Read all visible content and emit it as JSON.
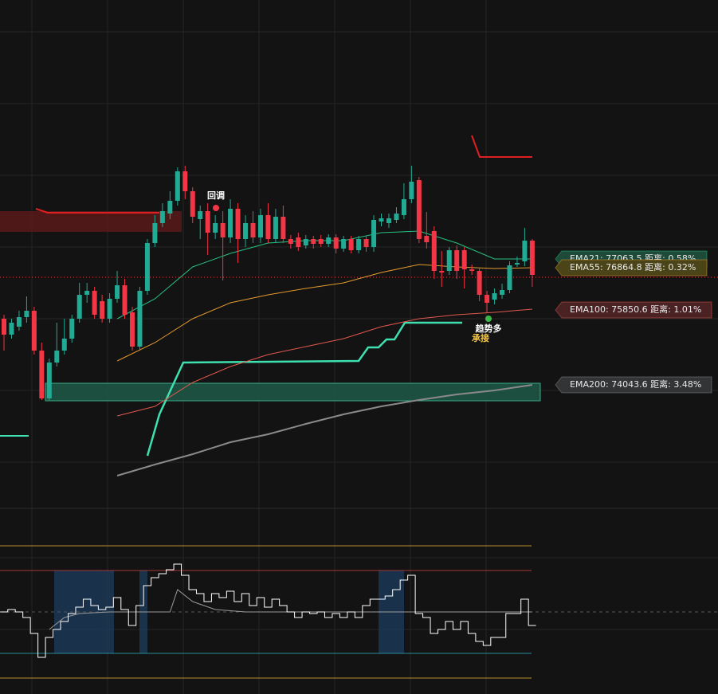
{
  "chart_data": [
    {
      "type": "candlestick",
      "ylim": [
        70865,
        83585
      ],
      "up_color": "#22ab94",
      "down_color": "#f23645",
      "candles": [
        [
          75585,
          75685,
          74785,
          75185
        ],
        [
          75185,
          75585,
          75085,
          75485
        ],
        [
          75385,
          75785,
          75285,
          75625
        ],
        [
          75625,
          76145,
          75485,
          75785
        ],
        [
          75785,
          75885,
          74685,
          74785
        ],
        [
          74785,
          74985,
          73545,
          73585
        ],
        [
          73585,
          74585,
          73545,
          74485
        ],
        [
          74485,
          75485,
          74385,
          74785
        ],
        [
          74785,
          75585,
          74685,
          75085
        ],
        [
          75085,
          75685,
          74985,
          75585
        ],
        [
          75585,
          76485,
          75485,
          76185
        ],
        [
          76185,
          76485,
          75985,
          76285
        ],
        [
          76285,
          76385,
          75585,
          75685
        ],
        [
          76025,
          76185,
          75485,
          75585
        ],
        [
          75585,
          76225,
          75485,
          76085
        ],
        [
          76085,
          76785,
          75985,
          76425
        ],
        [
          76425,
          76585,
          75585,
          75685
        ],
        [
          75745,
          75885,
          74785,
          74885
        ],
        [
          74885,
          76385,
          74785,
          76285
        ],
        [
          76285,
          77585,
          76185,
          77485
        ],
        [
          77485,
          78185,
          77385,
          77985
        ],
        [
          77985,
          78485,
          77885,
          78285
        ],
        [
          78225,
          78785,
          78085,
          78545
        ],
        [
          78545,
          79385,
          78425,
          79285
        ],
        [
          79285,
          79425,
          78585,
          78785
        ],
        [
          78785,
          78885,
          77985,
          78145
        ],
        [
          78085,
          78425,
          77585,
          78285
        ],
        [
          78285,
          78485,
          77185,
          77745
        ],
        [
          77745,
          78185,
          77585,
          77985
        ],
        [
          77985,
          78285,
          76545,
          77625
        ],
        [
          77625,
          78585,
          77485,
          78345
        ],
        [
          78345,
          78485,
          76985,
          77585
        ],
        [
          77585,
          78185,
          77385,
          77985
        ],
        [
          77985,
          78285,
          77485,
          77625
        ],
        [
          77625,
          78345,
          77485,
          78185
        ],
        [
          78185,
          78485,
          77485,
          77585
        ],
        [
          77585,
          78345,
          77485,
          78145
        ],
        [
          78145,
          78425,
          77485,
          77585
        ],
        [
          77585,
          77685,
          77345,
          77465
        ],
        [
          77625,
          77745,
          77285,
          77385
        ],
        [
          77425,
          77685,
          77345,
          77585
        ],
        [
          77585,
          77665,
          77345,
          77465
        ],
        [
          77585,
          77685,
          77385,
          77465
        ],
        [
          77465,
          77705,
          77385,
          77625
        ],
        [
          77625,
          77705,
          77225,
          77345
        ],
        [
          77345,
          77665,
          77265,
          77585
        ],
        [
          77585,
          77665,
          77225,
          77305
        ],
        [
          77305,
          77665,
          77225,
          77585
        ],
        [
          77585,
          77665,
          77265,
          77385
        ],
        [
          77385,
          78185,
          77265,
          78065
        ],
        [
          78025,
          78225,
          77905,
          78105
        ],
        [
          77985,
          78225,
          77865,
          78105
        ],
        [
          78065,
          78385,
          77985,
          78225
        ],
        [
          78185,
          78985,
          78085,
          78585
        ],
        [
          78585,
          79425,
          78485,
          79025
        ],
        [
          79065,
          79145,
          77485,
          77585
        ],
        [
          77665,
          78265,
          77345,
          77505
        ],
        [
          77785,
          77905,
          76585,
          76785
        ],
        [
          76785,
          77285,
          76385,
          76745
        ],
        [
          76785,
          77385,
          76685,
          77305
        ],
        [
          77305,
          77425,
          76585,
          76785
        ],
        [
          77305,
          77385,
          76345,
          76825
        ],
        [
          76825,
          76945,
          76685,
          76785
        ],
        [
          76785,
          76865,
          76025,
          76185
        ],
        [
          76185,
          76285,
          75745,
          75985
        ],
        [
          76065,
          76345,
          75945,
          76225
        ],
        [
          76185,
          76465,
          76085,
          76305
        ],
        [
          76305,
          77025,
          76225,
          76925
        ],
        [
          76945,
          77145,
          76885,
          76985
        ],
        [
          77025,
          77865,
          76905,
          77545
        ],
        [
          77545,
          77585,
          76385,
          76685
        ]
      ],
      "ema": [
        {
          "label": "EMA21: 77063.5  距离: 0.58%",
          "color": "#26c281",
          "label_bg": "#1e4a3a",
          "x": [
            15,
            20,
            25,
            30,
            35,
            40,
            45,
            50,
            55,
            60,
            65,
            70
          ],
          "values": [
            75585,
            76085,
            76885,
            77225,
            77485,
            77545,
            77545,
            77745,
            77785,
            77485,
            77085,
            77085
          ]
        },
        {
          "label": "EMA55: 76864.8  距离: 0.32%",
          "color": "#e39a2e",
          "label_bg": "#4a4418",
          "x": [
            15,
            20,
            25,
            30,
            35,
            40,
            45,
            50,
            55,
            60,
            65,
            70
          ],
          "values": [
            74525,
            74985,
            75585,
            75985,
            76185,
            76345,
            76485,
            76745,
            76945,
            76885,
            76845,
            76865
          ]
        },
        {
          "label": "EMA100: 75850.6  距离: 1.01%",
          "color": "#e0584e",
          "label_bg": "#4a2224",
          "x": [
            15,
            20,
            25,
            30,
            35,
            40,
            45,
            50,
            55,
            60,
            65,
            70
          ],
          "values": [
            73145,
            73385,
            73985,
            74385,
            74685,
            74885,
            75085,
            75385,
            75585,
            75685,
            75745,
            75825
          ]
        },
        {
          "label": "EMA200: 74043.6  距离: 3.48%",
          "color": "#8a8a8a",
          "label_bg": "#333436",
          "x": [
            15,
            20,
            25,
            30,
            35,
            40,
            45,
            50,
            55,
            60,
            65,
            70
          ],
          "values": [
            71645,
            71925,
            72185,
            72485,
            72685,
            72945,
            73185,
            73385,
            73545,
            73685,
            73785,
            73925
          ]
        }
      ],
      "annotations": [
        {
          "text": "回调",
          "color": "#ffffff"
        },
        {
          "text": "趋势多",
          "color": "#ffffff"
        },
        {
          "text": "承接",
          "color": "#f5c542"
        }
      ]
    },
    {
      "type": "line",
      "ylim": [
        -10,
        115
      ],
      "levels": [
        {
          "value": 83,
          "color": "#b8902a"
        },
        {
          "value": 67.5,
          "color": "#a33a3a"
        },
        {
          "value": 41.5,
          "color": "#555555"
        },
        {
          "value": 15.5,
          "color": "#2a8a9a"
        },
        {
          "value": 0,
          "color": "#b8902a"
        }
      ],
      "color": "#ffffff",
      "values": [
        41.5,
        43,
        41.5,
        38,
        28,
        13,
        25.5,
        30.5,
        35.5,
        40.5,
        44.5,
        49.5,
        45.5,
        43,
        44.5,
        50.5,
        43,
        33,
        45.5,
        58,
        63,
        65.5,
        68,
        71.5,
        64.5,
        55.5,
        53,
        48,
        53,
        50.5,
        54.5,
        48,
        53,
        45.5,
        50.5,
        44.5,
        49.5,
        45.5,
        41.5,
        38,
        41.5,
        40.5,
        41.5,
        38,
        40.5,
        38,
        41.5,
        38,
        45.5,
        49.5,
        49.5,
        51.5,
        55.5,
        61.5,
        64.5,
        40.5,
        38,
        28,
        30.5,
        35.5,
        30.5,
        35.5,
        28,
        23,
        20.5,
        25.5,
        25.5,
        40.5,
        40.5,
        49.5,
        33
      ],
      "signal": {
        "color": "#9a9a9a",
        "x": [
          6,
          8,
          10,
          14,
          18,
          22,
          23,
          25,
          28,
          32,
          40,
          55,
          70
        ],
        "values": [
          30.5,
          38,
          40.5,
          41.5,
          41.5,
          41.5,
          55.5,
          48,
          43,
          41.5,
          41.5,
          41.5,
          41.5
        ]
      }
    }
  ]
}
